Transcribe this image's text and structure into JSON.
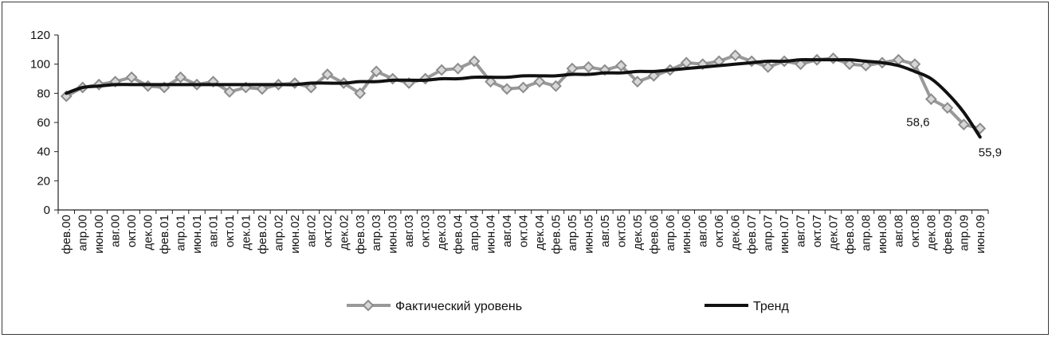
{
  "chart_data": {
    "type": "line",
    "title": "",
    "xlabel": "",
    "ylabel": "",
    "ylim": [
      0,
      120
    ],
    "yticks": [
      "0",
      "20",
      "40",
      "60",
      "80",
      "100",
      "120"
    ],
    "categories": [
      "фев.00",
      "апр.00",
      "июн.00",
      "авг.00",
      "окт.00",
      "дек.00",
      "фев.01",
      "апр.01",
      "июн.01",
      "авг.01",
      "окт.01",
      "дек.01",
      "фев.02",
      "апр.02",
      "июн.02",
      "авг.02",
      "окт.02",
      "дек.02",
      "фев.03",
      "апр.03",
      "июн.03",
      "авг.03",
      "окт.03",
      "дек.03",
      "фев.04",
      "апр.04",
      "июн.04",
      "авг.04",
      "окт.04",
      "дек.04",
      "фев.05",
      "апр.05",
      "июн.05",
      "авг.05",
      "окт.05",
      "дек.05",
      "фев.06",
      "апр.06",
      "июн.06",
      "авг.06",
      "окт.06",
      "дек.06",
      "фев.07",
      "апр.07",
      "июн.07",
      "авг.07",
      "окт.07",
      "дек.07",
      "фев.08",
      "апр.08",
      "июн.08",
      "авг.08",
      "окт.08",
      "дек.08",
      "фев.09",
      "апр.09",
      "июн.09"
    ],
    "series": [
      {
        "name": "Фактический уровень",
        "color": "#999999",
        "marker": "diamond",
        "values": [
          78,
          84,
          86,
          88,
          91,
          85,
          84,
          91,
          86,
          88,
          81,
          84,
          83,
          86,
          87,
          84,
          93,
          87,
          80,
          95,
          90,
          87,
          90,
          96,
          97,
          102,
          88,
          83,
          84,
          88,
          85,
          97,
          98,
          96,
          99,
          88,
          92,
          96,
          101,
          100,
          102,
          106,
          102,
          98,
          102,
          100,
          103,
          104,
          100,
          99,
          101,
          103,
          100,
          76,
          70,
          58.6,
          55.9
        ]
      },
      {
        "name": "Тренд",
        "color": "#111111",
        "marker": "none",
        "values": [
          80,
          84,
          85,
          86,
          86,
          86,
          86,
          86,
          86,
          86,
          86,
          86,
          86,
          86,
          86,
          87,
          87,
          87,
          88,
          88,
          89,
          89,
          89,
          90,
          90,
          91,
          91,
          91,
          92,
          92,
          92,
          93,
          93,
          94,
          94,
          95,
          95,
          96,
          97,
          98,
          99,
          100,
          101,
          102,
          102,
          103,
          103,
          103,
          103,
          102,
          101,
          99,
          95,
          90,
          80,
          67,
          50
        ]
      }
    ],
    "annotations": [
      {
        "label": "58,6",
        "index": 55,
        "series": 0
      },
      {
        "label": "55,9",
        "index": 56,
        "series": 0
      }
    ],
    "legend": {
      "placement": "bottom",
      "items": [
        {
          "label": "Фактический уровень",
          "series": 0
        },
        {
          "label": "Тренд",
          "series": 1
        }
      ]
    },
    "grid": false
  }
}
